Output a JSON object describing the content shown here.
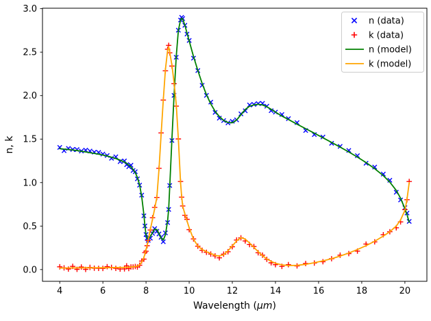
{
  "figure": {
    "background": "#ffffff"
  },
  "chart_data": {
    "type": "line",
    "title": "",
    "xlabel": "Wavelength (μm)",
    "xlabel_italic_part": "μm",
    "ylabel": "n, k",
    "xlim": [
      3.2,
      21.02
    ],
    "ylim": [
      -0.135,
      3.005
    ],
    "xticks": [
      4,
      6,
      8,
      10,
      12,
      14,
      16,
      18,
      20
    ],
    "yticks": [
      0.0,
      0.5,
      1.0,
      1.5,
      2.0,
      2.5,
      3.0
    ],
    "ytick_labels": [
      "0.0",
      "0.5",
      "1.0",
      "1.5",
      "2.0",
      "2.5",
      "3.0"
    ],
    "grid": false,
    "legend_position": "upper right",
    "axis_color": "#000000",
    "x": [
      4.0,
      4.2,
      4.4,
      4.6,
      4.8,
      5.0,
      5.2,
      5.4,
      5.6,
      5.8,
      6.0,
      6.2,
      6.4,
      6.6,
      6.8,
      7.0,
      7.1,
      7.2,
      7.3,
      7.4,
      7.5,
      7.6,
      7.7,
      7.8,
      7.9,
      7.95,
      8.0,
      8.05,
      8.1,
      8.2,
      8.3,
      8.4,
      8.5,
      8.6,
      8.7,
      8.8,
      8.9,
      9.0,
      9.05,
      9.1,
      9.2,
      9.3,
      9.4,
      9.5,
      9.6,
      9.65,
      9.7,
      9.8,
      9.9,
      10.0,
      10.2,
      10.4,
      10.6,
      10.8,
      11.0,
      11.2,
      11.4,
      11.6,
      11.8,
      12.0,
      12.2,
      12.4,
      12.6,
      12.8,
      13.0,
      13.2,
      13.4,
      13.6,
      13.8,
      14.0,
      14.3,
      14.6,
      15.0,
      15.4,
      15.8,
      16.2,
      16.6,
      17.0,
      17.4,
      17.8,
      18.2,
      18.6,
      19.0,
      19.3,
      19.6,
      19.8,
      20.0,
      20.1,
      20.2
    ],
    "series": [
      {
        "name": "n (data)",
        "type": "scatter",
        "marker": "x",
        "color": "#0000ff",
        "noise": 0.022,
        "values": [
          1.39,
          1.385,
          1.38,
          1.375,
          1.368,
          1.36,
          1.352,
          1.344,
          1.336,
          1.327,
          1.317,
          1.305,
          1.292,
          1.277,
          1.258,
          1.235,
          1.22,
          1.202,
          1.18,
          1.152,
          1.115,
          1.06,
          0.975,
          0.84,
          0.63,
          0.5,
          0.4,
          0.36,
          0.355,
          0.38,
          0.425,
          0.465,
          0.46,
          0.415,
          0.36,
          0.34,
          0.4,
          0.56,
          0.7,
          0.95,
          1.5,
          2.0,
          2.45,
          2.75,
          2.87,
          2.89,
          2.88,
          2.81,
          2.72,
          2.63,
          2.45,
          2.29,
          2.14,
          2.01,
          1.905,
          1.82,
          1.76,
          1.715,
          1.69,
          1.688,
          1.72,
          1.78,
          1.84,
          1.878,
          1.893,
          1.9,
          1.893,
          1.872,
          1.843,
          1.81,
          1.765,
          1.725,
          1.672,
          1.62,
          1.568,
          1.515,
          1.462,
          1.408,
          1.352,
          1.293,
          1.23,
          1.16,
          1.08,
          1.005,
          0.91,
          0.82,
          0.7,
          0.63,
          0.545
        ]
      },
      {
        "name": "k (data)",
        "type": "scatter",
        "marker": "+",
        "color": "#ff0000",
        "noise": 0.022,
        "values": [
          0.018,
          0.018,
          0.018,
          0.019,
          0.019,
          0.019,
          0.02,
          0.02,
          0.02,
          0.021,
          0.021,
          0.022,
          0.022,
          0.023,
          0.024,
          0.025,
          0.026,
          0.027,
          0.029,
          0.031,
          0.034,
          0.04,
          0.055,
          0.085,
          0.14,
          0.18,
          0.23,
          0.28,
          0.34,
          0.46,
          0.58,
          0.7,
          0.83,
          1.15,
          1.55,
          1.95,
          2.3,
          2.52,
          2.56,
          2.5,
          2.35,
          2.15,
          1.9,
          1.5,
          1.0,
          0.84,
          0.73,
          0.64,
          0.56,
          0.48,
          0.35,
          0.27,
          0.23,
          0.205,
          0.185,
          0.163,
          0.155,
          0.17,
          0.215,
          0.27,
          0.33,
          0.368,
          0.35,
          0.305,
          0.255,
          0.205,
          0.16,
          0.122,
          0.094,
          0.073,
          0.054,
          0.046,
          0.048,
          0.06,
          0.078,
          0.1,
          0.125,
          0.155,
          0.19,
          0.23,
          0.275,
          0.325,
          0.385,
          0.435,
          0.5,
          0.57,
          0.68,
          0.81,
          1.0
        ]
      },
      {
        "name": "n (model)",
        "type": "line",
        "color": "#008000",
        "linewidth": 1.8,
        "values": [
          1.39,
          1.385,
          1.38,
          1.375,
          1.368,
          1.36,
          1.352,
          1.344,
          1.336,
          1.327,
          1.317,
          1.305,
          1.292,
          1.277,
          1.258,
          1.235,
          1.22,
          1.202,
          1.18,
          1.152,
          1.115,
          1.06,
          0.975,
          0.84,
          0.63,
          0.5,
          0.4,
          0.36,
          0.355,
          0.38,
          0.425,
          0.465,
          0.46,
          0.415,
          0.36,
          0.34,
          0.4,
          0.56,
          0.7,
          0.95,
          1.5,
          2.0,
          2.45,
          2.75,
          2.87,
          2.89,
          2.88,
          2.81,
          2.72,
          2.63,
          2.45,
          2.29,
          2.14,
          2.01,
          1.905,
          1.82,
          1.76,
          1.715,
          1.69,
          1.688,
          1.72,
          1.78,
          1.84,
          1.878,
          1.893,
          1.9,
          1.893,
          1.872,
          1.843,
          1.81,
          1.765,
          1.725,
          1.672,
          1.62,
          1.568,
          1.515,
          1.462,
          1.408,
          1.352,
          1.293,
          1.23,
          1.16,
          1.08,
          1.005,
          0.91,
          0.82,
          0.7,
          0.63,
          0.545
        ]
      },
      {
        "name": "k (model)",
        "type": "line",
        "color": "#ffa500",
        "linewidth": 1.8,
        "values": [
          0.018,
          0.018,
          0.018,
          0.019,
          0.019,
          0.019,
          0.02,
          0.02,
          0.02,
          0.021,
          0.021,
          0.022,
          0.022,
          0.023,
          0.024,
          0.025,
          0.026,
          0.027,
          0.029,
          0.031,
          0.034,
          0.04,
          0.055,
          0.085,
          0.14,
          0.18,
          0.23,
          0.28,
          0.34,
          0.46,
          0.58,
          0.7,
          0.83,
          1.15,
          1.55,
          1.95,
          2.3,
          2.52,
          2.56,
          2.5,
          2.35,
          2.15,
          1.9,
          1.5,
          1.0,
          0.84,
          0.73,
          0.64,
          0.56,
          0.48,
          0.35,
          0.27,
          0.23,
          0.205,
          0.185,
          0.163,
          0.155,
          0.17,
          0.215,
          0.27,
          0.33,
          0.368,
          0.35,
          0.305,
          0.255,
          0.205,
          0.16,
          0.122,
          0.094,
          0.073,
          0.054,
          0.046,
          0.048,
          0.06,
          0.078,
          0.1,
          0.125,
          0.155,
          0.19,
          0.23,
          0.275,
          0.325,
          0.385,
          0.435,
          0.5,
          0.57,
          0.68,
          0.81,
          1.0
        ]
      }
    ]
  }
}
